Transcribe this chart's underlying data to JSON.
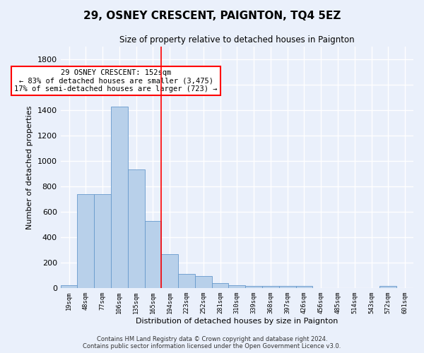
{
  "title": "29, OSNEY CRESCENT, PAIGNTON, TQ4 5EZ",
  "subtitle": "Size of property relative to detached houses in Paignton",
  "xlabel": "Distribution of detached houses by size in Paignton",
  "ylabel": "Number of detached properties",
  "bin_labels": [
    "19sqm",
    "48sqm",
    "77sqm",
    "106sqm",
    "135sqm",
    "165sqm",
    "194sqm",
    "223sqm",
    "252sqm",
    "281sqm",
    "310sqm",
    "339sqm",
    "368sqm",
    "397sqm",
    "426sqm",
    "456sqm",
    "485sqm",
    "514sqm",
    "543sqm",
    "572sqm",
    "601sqm"
  ],
  "bar_values": [
    25,
    740,
    740,
    1425,
    935,
    530,
    265,
    110,
    95,
    40,
    25,
    15,
    15,
    15,
    15,
    0,
    0,
    0,
    0,
    15,
    0
  ],
  "bar_color": "#b8d0ea",
  "bar_edge_color": "#6699cc",
  "background_color": "#eaf0fb",
  "grid_color": "#ffffff",
  "red_line_x": 5.5,
  "annotation_text": "29 OSNEY CRESCENT: 152sqm\n← 83% of detached houses are smaller (3,475)\n17% of semi-detached houses are larger (723) →",
  "annotation_box_color": "white",
  "annotation_box_edge": "red",
  "footer": "Contains HM Land Registry data © Crown copyright and database right 2024.\nContains public sector information licensed under the Open Government Licence v3.0.",
  "ylim": [
    0,
    1900
  ],
  "yticks": [
    0,
    200,
    400,
    600,
    800,
    1000,
    1200,
    1400,
    1600,
    1800
  ]
}
